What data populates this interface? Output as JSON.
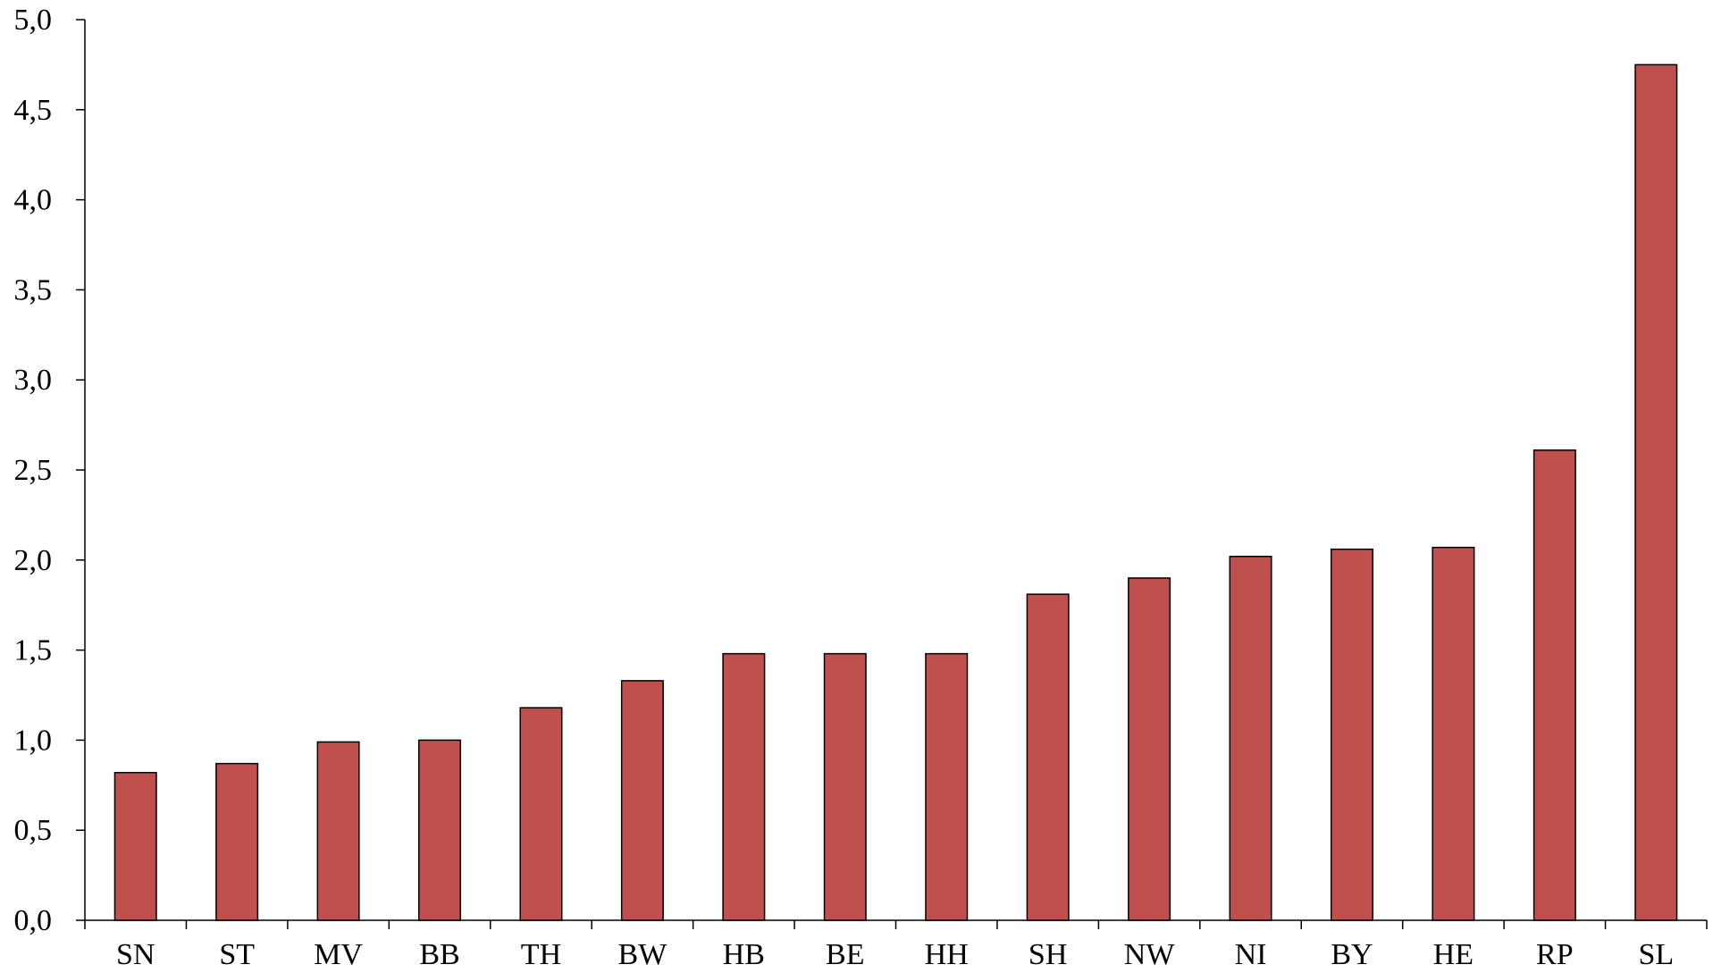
{
  "colors": {
    "bar_fill": "#C0504D",
    "bar_stroke": "#000000",
    "axis": "#000000",
    "background": "#FFFFFF"
  },
  "chart_data": {
    "type": "bar",
    "title": "",
    "xlabel": "",
    "ylabel": "",
    "categories": [
      "SN",
      "ST",
      "MV",
      "BB",
      "TH",
      "BW",
      "HB",
      "BE",
      "HH",
      "SH",
      "NW",
      "NI",
      "BY",
      "HE",
      "RP",
      "SL"
    ],
    "values": [
      0.82,
      0.87,
      0.99,
      1.0,
      1.18,
      1.33,
      1.48,
      1.48,
      1.48,
      1.81,
      1.9,
      2.02,
      2.06,
      2.07,
      2.61,
      4.75
    ],
    "ylim": [
      0,
      5
    ],
    "yticks": [
      0,
      0.5,
      1,
      1.5,
      2,
      2.5,
      3,
      3.5,
      4,
      4.5,
      5
    ],
    "ytick_labels": [
      "0,0",
      "0,5",
      "1,0",
      "1,5",
      "2,0",
      "2,5",
      "3,0",
      "3,5",
      "4,0",
      "4,5",
      "5,0"
    ],
    "grid": false,
    "legend": "none"
  }
}
